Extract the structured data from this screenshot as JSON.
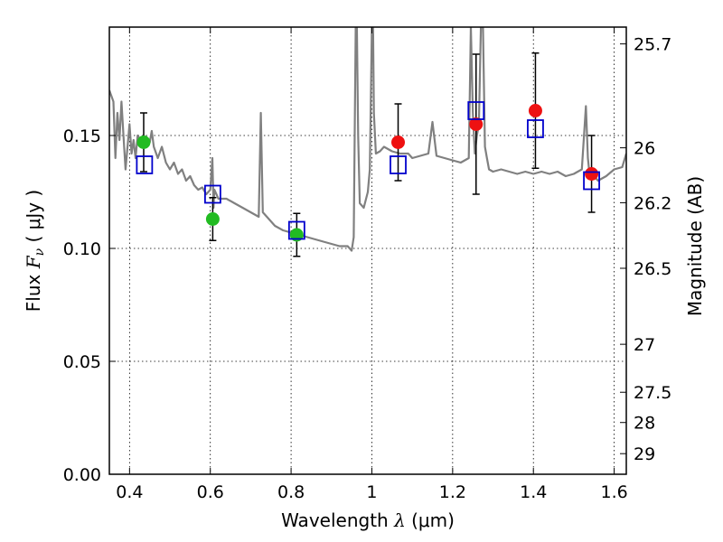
{
  "chart_data": {
    "type": "scatter",
    "title": "",
    "xlabel": {
      "prefix": "Wavelength  ",
      "symbol": "λ",
      "units": " (μm)"
    },
    "ylabel": {
      "prefix": "Flux  ",
      "symbol": "F",
      "subscript": "ν",
      "units": "  ( μJy )"
    },
    "y2label": "Magnitude (AB)",
    "xlim": [
      0.35,
      1.63
    ],
    "ylim": [
      0.0,
      0.198
    ],
    "grid": true,
    "x_ticks": [
      {
        "value": 0.4,
        "label": "0.4"
      },
      {
        "value": 0.6,
        "label": "0.6"
      },
      {
        "value": 0.8,
        "label": "0.8"
      },
      {
        "value": 1.0,
        "label": "1"
      },
      {
        "value": 1.2,
        "label": "1.2"
      },
      {
        "value": 1.4,
        "label": "1.4"
      },
      {
        "value": 1.6,
        "label": "1.6"
      }
    ],
    "y_ticks": [
      {
        "value": 0.0,
        "label": "0.00"
      },
      {
        "value": 0.05,
        "label": "0.05"
      },
      {
        "value": 0.1,
        "label": "0.10"
      },
      {
        "value": 0.15,
        "label": "0.15"
      }
    ],
    "y2_ticks": [
      {
        "value": 25.7,
        "label": "25.7"
      },
      {
        "value": 26.0,
        "label": "26"
      },
      {
        "value": 26.2,
        "label": "26.2"
      },
      {
        "value": 26.5,
        "label": "26.5"
      },
      {
        "value": 27.0,
        "label": "27"
      },
      {
        "value": 27.5,
        "label": "27.5"
      },
      {
        "value": 28.0,
        "label": "28"
      },
      {
        "value": 29.0,
        "label": "29"
      }
    ],
    "series": [
      {
        "marker": "circle",
        "color": "#22bb22",
        "points": [
          {
            "x": 0.435,
            "y": 0.147,
            "yerr": 0.013
          },
          {
            "x": 0.606,
            "y": 0.113,
            "yerr": 0.0095
          },
          {
            "x": 0.814,
            "y": 0.106,
            "yerr": 0.0095
          }
        ]
      },
      {
        "marker": "circle",
        "color": "#ee1111",
        "points": [
          {
            "x": 1.065,
            "y": 0.147,
            "yerr": 0.017
          },
          {
            "x": 1.258,
            "y": 0.155,
            "yerr": 0.031
          },
          {
            "x": 1.405,
            "y": 0.161,
            "yerr": 0.0255
          },
          {
            "x": 1.544,
            "y": 0.133,
            "yerr": 0.017
          }
        ]
      },
      {
        "marker": "open-square",
        "color": "#0000cc",
        "points": [
          {
            "x": 0.437,
            "y": 0.137
          },
          {
            "x": 0.606,
            "y": 0.124
          },
          {
            "x": 0.814,
            "y": 0.108
          },
          {
            "x": 1.065,
            "y": 0.137
          },
          {
            "x": 1.258,
            "y": 0.161
          },
          {
            "x": 1.405,
            "y": 0.153
          },
          {
            "x": 1.544,
            "y": 0.13
          }
        ]
      }
    ],
    "model_spectrum": {
      "type": "line",
      "color": "#808080",
      "x": [
        0.35,
        0.36,
        0.365,
        0.37,
        0.375,
        0.38,
        0.385,
        0.39,
        0.395,
        0.4,
        0.405,
        0.41,
        0.415,
        0.42,
        0.43,
        0.44,
        0.45,
        0.455,
        0.46,
        0.47,
        0.48,
        0.49,
        0.5,
        0.51,
        0.52,
        0.53,
        0.54,
        0.55,
        0.56,
        0.57,
        0.58,
        0.59,
        0.6,
        0.605,
        0.608,
        0.61,
        0.62,
        0.64,
        0.66,
        0.68,
        0.7,
        0.72,
        0.725,
        0.73,
        0.74,
        0.76,
        0.78,
        0.8,
        0.82,
        0.84,
        0.86,
        0.88,
        0.9,
        0.92,
        0.94,
        0.95,
        0.955,
        0.96,
        0.963,
        0.966,
        0.97,
        0.98,
        0.99,
        0.995,
        1.0,
        1.003,
        1.005,
        1.01,
        1.02,
        1.03,
        1.05,
        1.07,
        1.09,
        1.1,
        1.12,
        1.14,
        1.15,
        1.16,
        1.18,
        1.2,
        1.22,
        1.24,
        1.245,
        1.25,
        1.255,
        1.26,
        1.265,
        1.27,
        1.275,
        1.28,
        1.285,
        1.29,
        1.3,
        1.32,
        1.34,
        1.36,
        1.38,
        1.4,
        1.42,
        1.44,
        1.46,
        1.48,
        1.5,
        1.52,
        1.53,
        1.535,
        1.54,
        1.55,
        1.56,
        1.58,
        1.6,
        1.62,
        1.63
      ],
      "y": [
        0.17,
        0.165,
        0.14,
        0.16,
        0.148,
        0.165,
        0.15,
        0.135,
        0.145,
        0.155,
        0.142,
        0.148,
        0.14,
        0.15,
        0.147,
        0.145,
        0.147,
        0.152,
        0.145,
        0.14,
        0.145,
        0.138,
        0.135,
        0.138,
        0.133,
        0.135,
        0.13,
        0.132,
        0.128,
        0.126,
        0.127,
        0.124,
        0.126,
        0.14,
        0.118,
        0.126,
        0.122,
        0.122,
        0.12,
        0.118,
        0.116,
        0.114,
        0.16,
        0.116,
        0.114,
        0.11,
        0.108,
        0.107,
        0.106,
        0.105,
        0.104,
        0.103,
        0.102,
        0.101,
        0.101,
        0.099,
        0.105,
        0.198,
        0.198,
        0.15,
        0.12,
        0.118,
        0.125,
        0.135,
        0.198,
        0.198,
        0.16,
        0.142,
        0.143,
        0.145,
        0.143,
        0.142,
        0.142,
        0.14,
        0.141,
        0.142,
        0.156,
        0.141,
        0.14,
        0.139,
        0.138,
        0.14,
        0.198,
        0.16,
        0.142,
        0.15,
        0.155,
        0.198,
        0.198,
        0.145,
        0.14,
        0.135,
        0.134,
        0.135,
        0.134,
        0.133,
        0.134,
        0.133,
        0.134,
        0.133,
        0.134,
        0.132,
        0.133,
        0.135,
        0.163,
        0.14,
        0.131,
        0.132,
        0.13,
        0.132,
        0.135,
        0.136,
        0.142
      ]
    }
  }
}
